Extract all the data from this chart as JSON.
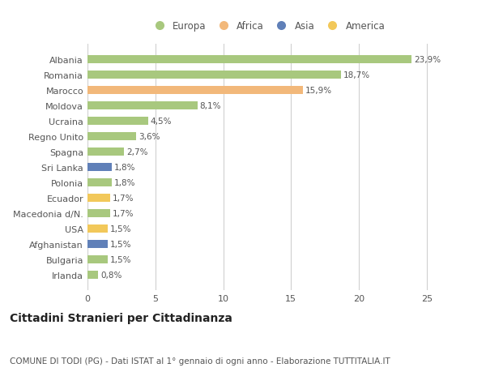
{
  "countries": [
    "Albania",
    "Romania",
    "Marocco",
    "Moldova",
    "Ucraina",
    "Regno Unito",
    "Spagna",
    "Sri Lanka",
    "Polonia",
    "Ecuador",
    "Macedonia d/N.",
    "USA",
    "Afghanistan",
    "Bulgaria",
    "Irlanda"
  ],
  "values": [
    23.9,
    18.7,
    15.9,
    8.1,
    4.5,
    3.6,
    2.7,
    1.8,
    1.8,
    1.7,
    1.7,
    1.5,
    1.5,
    1.5,
    0.8
  ],
  "labels": [
    "23,9%",
    "18,7%",
    "15,9%",
    "8,1%",
    "4,5%",
    "3,6%",
    "2,7%",
    "1,8%",
    "1,8%",
    "1,7%",
    "1,7%",
    "1,5%",
    "1,5%",
    "1,5%",
    "0,8%"
  ],
  "continents": [
    "Europa",
    "Europa",
    "Africa",
    "Europa",
    "Europa",
    "Europa",
    "Europa",
    "Asia",
    "Europa",
    "America",
    "Europa",
    "America",
    "Asia",
    "Europa",
    "Europa"
  ],
  "continent_colors": {
    "Europa": "#a8c87e",
    "Africa": "#f2b87a",
    "Asia": "#6080b8",
    "America": "#f2c85a"
  },
  "legend_order": [
    "Europa",
    "Africa",
    "Asia",
    "America"
  ],
  "title": "Cittadini Stranieri per Cittadinanza",
  "subtitle": "COMUNE DI TODI (PG) - Dati ISTAT al 1° gennaio di ogni anno - Elaborazione TUTTITALIA.IT",
  "xlim": [
    0,
    26.5
  ],
  "xticks": [
    0,
    5,
    10,
    15,
    20,
    25
  ],
  "background_color": "#ffffff",
  "grid_color": "#d0d0d0",
  "bar_height": 0.55,
  "title_fontsize": 10,
  "subtitle_fontsize": 7.5,
  "label_fontsize": 7.5,
  "tick_fontsize": 8,
  "legend_fontsize": 8.5
}
